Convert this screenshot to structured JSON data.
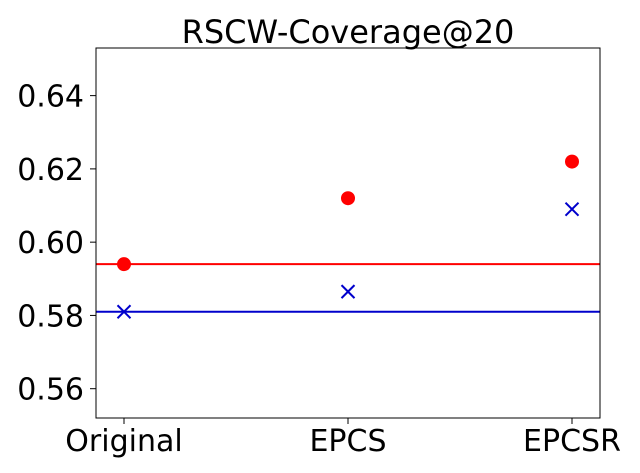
{
  "chart_data": {
    "type": "scatter",
    "title": "RSCW-Coverage@20",
    "xlabel": "",
    "ylabel": "",
    "categories": [
      "Original",
      "EPCS",
      "EPCSR"
    ],
    "ylim": [
      0.552,
      0.653
    ],
    "yticks": [
      0.56,
      0.58,
      0.6,
      0.62,
      0.64
    ],
    "ytick_labels": [
      "0.56",
      "0.58",
      "0.60",
      "0.62",
      "0.64"
    ],
    "grid": false,
    "legend": "none",
    "series": [
      {
        "marker": "circle",
        "color": "#ff0000",
        "values": [
          0.594,
          0.612,
          0.622
        ],
        "hline": 0.594
      },
      {
        "marker": "x",
        "color": "#0000cc",
        "values": [
          0.581,
          0.5865,
          0.609
        ],
        "hline": 0.581
      }
    ]
  }
}
